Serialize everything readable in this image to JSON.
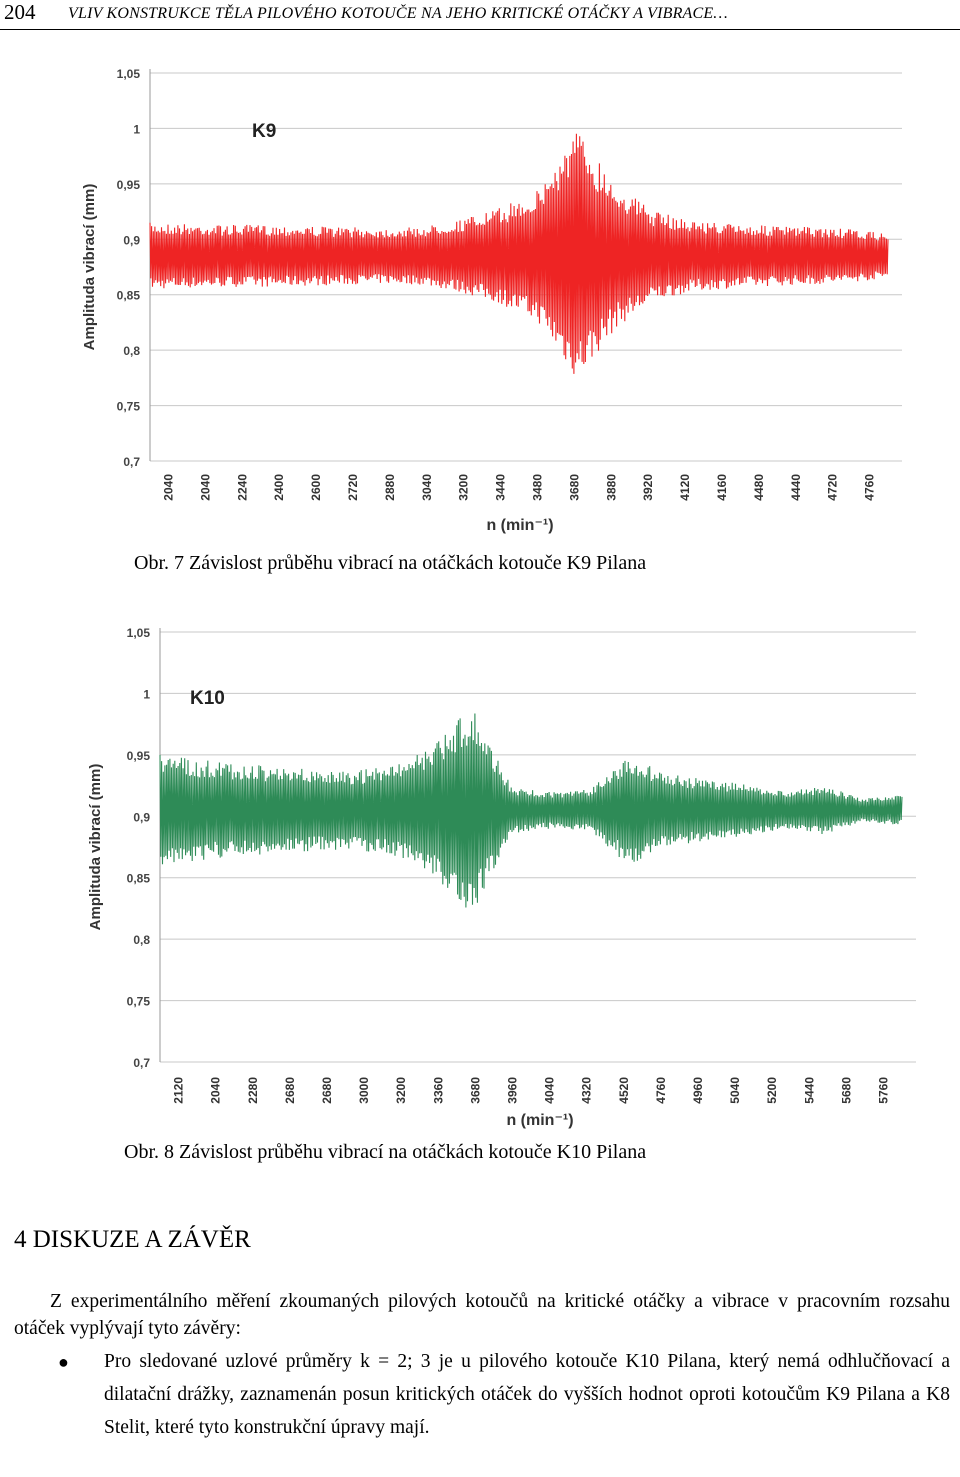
{
  "header": {
    "page_number": "204",
    "running_title": "VLIV KONSTRUKCE TĚLA PILOVÉHO KOTOUČE NA JEHO KRITICKÉ OTÁČKY A VIBRACE…"
  },
  "figures": [
    {
      "caption": "Obr. 7 Závislost průběhu vibrací na otáčkách kotouče K9 Pilana",
      "chart_data": {
        "type": "line",
        "annotation": "K9",
        "ylabel": "Amplituda vibrací (mm)",
        "xlabel": "n (min⁻¹)",
        "ylim": [
          0.7,
          1.05
        ],
        "yticks": [
          "1,05",
          "1",
          "0,95",
          "0,9",
          "0,85",
          "0,8",
          "0,75",
          "0,7"
        ],
        "categories": [
          "2040",
          "2040",
          "2240",
          "2400",
          "2600",
          "2720",
          "2880",
          "3040",
          "3200",
          "3440",
          "3480",
          "3680",
          "3880",
          "3920",
          "4120",
          "4160",
          "4480",
          "4440",
          "4720",
          "4760"
        ],
        "series": [
          {
            "color": "#ee2424",
            "center": 0.885,
            "upper_envelope": [
              0.915,
              0.914,
              0.913,
              0.913,
              0.912,
              0.911,
              0.91,
              0.911,
              0.918,
              0.928,
              0.945,
              1.0,
              0.95,
              0.925,
              0.917,
              0.914,
              0.912,
              0.911,
              0.909,
              0.905
            ],
            "lower_envelope": [
              0.855,
              0.856,
              0.857,
              0.857,
              0.858,
              0.859,
              0.86,
              0.859,
              0.852,
              0.842,
              0.825,
              0.772,
              0.82,
              0.845,
              0.853,
              0.856,
              0.858,
              0.859,
              0.861,
              0.865
            ]
          }
        ],
        "grid": "horizontal"
      }
    },
    {
      "caption": "Obr. 8  Závislost průběhu vibrací na otáčkách kotouče K10 Pilana",
      "chart_data": {
        "type": "line",
        "annotation": "K10",
        "ylabel": "Amplituda vibrací (mm)",
        "xlabel": "n (min⁻¹)",
        "ylim": [
          0.7,
          1.05
        ],
        "yticks": [
          "1,05",
          "1",
          "0,95",
          "0,9",
          "0,85",
          "0,8",
          "0,75",
          "0,7"
        ],
        "categories": [
          "2120",
          "2040",
          "2280",
          "2680",
          "2680",
          "3000",
          "3200",
          "3360",
          "3680",
          "3960",
          "4040",
          "4320",
          "4520",
          "4760",
          "4960",
          "5040",
          "5200",
          "5440",
          "5680",
          "5760"
        ],
        "series": [
          {
            "color": "#2e8b57",
            "center": 0.905,
            "upper_envelope": [
              0.95,
              0.946,
              0.943,
              0.94,
              0.938,
              0.937,
              0.942,
              0.958,
              0.99,
              0.924,
              0.92,
              0.922,
              0.95,
              0.935,
              0.93,
              0.926,
              0.92,
              0.925,
              0.915,
              0.917
            ],
            "lower_envelope": [
              0.86,
              0.864,
              0.867,
              0.87,
              0.872,
              0.873,
              0.868,
              0.852,
              0.82,
              0.886,
              0.89,
              0.888,
              0.86,
              0.875,
              0.88,
              0.884,
              0.89,
              0.885,
              0.895,
              0.893
            ]
          }
        ],
        "grid": "horizontal"
      }
    }
  ],
  "section": {
    "title": "4 DISKUZE A ZÁVĚR"
  },
  "body": {
    "paragraph": "Z experimentálního měření zkoumaných pilových kotoučů na kritické otáčky a vibrace v pracovním rozsahu otáček vyplývají tyto závěry:",
    "bullets": [
      "Pro sledované uzlové průměry k = 2; 3 je u pilového kotouče K10 Pilana, který nemá odhlučňovací a dilatační drážky, zaznamenán posun kritických otáček do vyšších hodnot oproti kotoučům K9 Pilana a K8 Stelit, které tyto konstrukční úpravy mají."
    ]
  }
}
